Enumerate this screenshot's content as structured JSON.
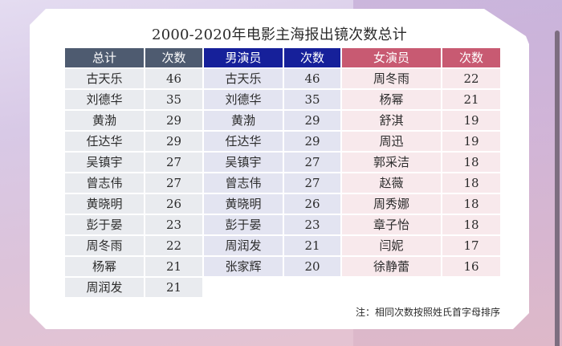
{
  "title": "2000-2020年电影主海报出镜次数总计",
  "headers": {
    "total_name": "总计",
    "total_count": "次数",
    "male_name": "男演员",
    "male_count": "次数",
    "female_name": "女演员",
    "female_count": "次数"
  },
  "colors": {
    "total_header": "#4e5b70",
    "male_header": "#16209a",
    "female_header": "#c85a72"
  },
  "total": [
    {
      "name": "古天乐",
      "count": "46"
    },
    {
      "name": "刘德华",
      "count": "35"
    },
    {
      "name": "黄渤",
      "count": "29"
    },
    {
      "name": "任达华",
      "count": "29"
    },
    {
      "name": "吴镇宇",
      "count": "27"
    },
    {
      "name": "曾志伟",
      "count": "27"
    },
    {
      "name": "黄晓明",
      "count": "26"
    },
    {
      "name": "彭于晏",
      "count": "23"
    },
    {
      "name": "周冬雨",
      "count": "22"
    },
    {
      "name": "杨幂",
      "count": "21"
    },
    {
      "name": "周润发",
      "count": "21"
    }
  ],
  "male": [
    {
      "name": "古天乐",
      "count": "46"
    },
    {
      "name": "刘德华",
      "count": "35"
    },
    {
      "name": "黄渤",
      "count": "29"
    },
    {
      "name": "任达华",
      "count": "29"
    },
    {
      "name": "吴镇宇",
      "count": "27"
    },
    {
      "name": "曾志伟",
      "count": "27"
    },
    {
      "name": "黄晓明",
      "count": "26"
    },
    {
      "name": "彭于晏",
      "count": "23"
    },
    {
      "name": "周润发",
      "count": "21"
    },
    {
      "name": "张家辉",
      "count": "20"
    }
  ],
  "female": [
    {
      "name": "周冬雨",
      "count": "22"
    },
    {
      "name": "杨幂",
      "count": "21"
    },
    {
      "name": "舒淇",
      "count": "19"
    },
    {
      "name": "周迅",
      "count": "19"
    },
    {
      "name": "郭采洁",
      "count": "18"
    },
    {
      "name": "赵薇",
      "count": "18"
    },
    {
      "name": "周秀娜",
      "count": "18"
    },
    {
      "name": "章子怡",
      "count": "18"
    },
    {
      "name": "闫妮",
      "count": "17"
    },
    {
      "name": "徐静蕾",
      "count": "16"
    }
  ],
  "note": "注：相同次数按照姓氏首字母排序"
}
